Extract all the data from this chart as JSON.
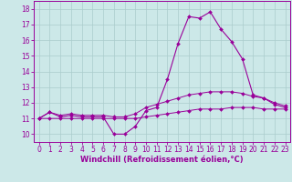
{
  "xlabel": "Windchill (Refroidissement éolien,°C)",
  "bg_color": "#cce8e8",
  "line_color": "#990099",
  "hours": [
    0,
    1,
    2,
    3,
    4,
    5,
    6,
    7,
    8,
    9,
    10,
    11,
    12,
    13,
    14,
    15,
    16,
    17,
    18,
    19,
    20,
    21,
    22,
    23
  ],
  "line_main": [
    11.0,
    11.4,
    11.1,
    11.2,
    11.1,
    11.1,
    11.1,
    10.0,
    10.0,
    10.5,
    11.5,
    11.7,
    13.5,
    15.8,
    17.5,
    17.4,
    17.8,
    16.7,
    15.9,
    14.8,
    12.5,
    12.3,
    11.9,
    11.7
  ],
  "line_upper": [
    11.0,
    11.4,
    11.2,
    11.3,
    11.2,
    11.2,
    11.2,
    11.1,
    11.1,
    11.3,
    11.7,
    11.9,
    12.1,
    12.3,
    12.5,
    12.6,
    12.7,
    12.7,
    12.7,
    12.6,
    12.4,
    12.3,
    12.0,
    11.8
  ],
  "line_lower": [
    11.0,
    11.0,
    11.0,
    11.0,
    11.0,
    11.0,
    11.0,
    11.0,
    11.0,
    11.0,
    11.1,
    11.2,
    11.3,
    11.4,
    11.5,
    11.6,
    11.6,
    11.6,
    11.7,
    11.7,
    11.7,
    11.6,
    11.6,
    11.6
  ],
  "ylim": [
    9.5,
    18.5
  ],
  "xlim_left": -0.5,
  "xlim_right": 23.5,
  "yticks": [
    10,
    11,
    12,
    13,
    14,
    15,
    16,
    17,
    18
  ],
  "xticks": [
    0,
    1,
    2,
    3,
    4,
    5,
    6,
    7,
    8,
    9,
    10,
    11,
    12,
    13,
    14,
    15,
    16,
    17,
    18,
    19,
    20,
    21,
    22,
    23
  ],
  "grid_color": "#aacccc",
  "marker_size": 2.0,
  "lw_main": 0.8,
  "lw_band": 0.7,
  "tick_fontsize": 5.5,
  "xlabel_fontsize": 6.0
}
